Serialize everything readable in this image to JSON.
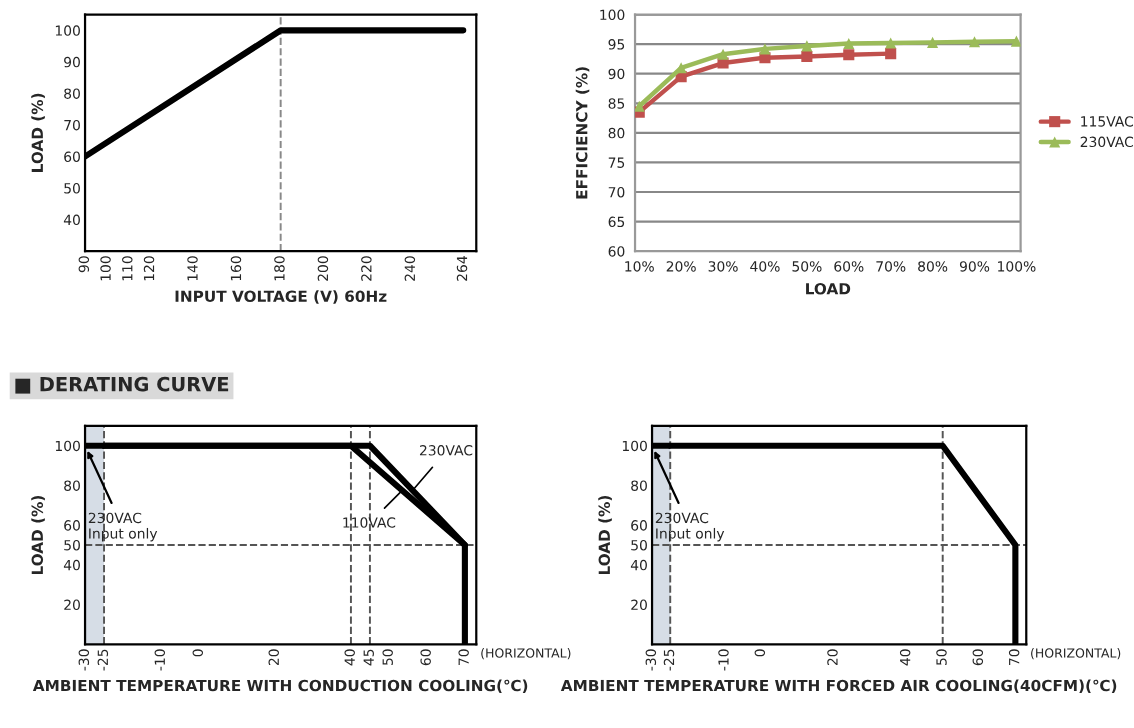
{
  "chart_data": [
    {
      "type": "line",
      "xlabel": "INPUT VOLTAGE (V) 60Hz",
      "ylabel": "LOAD (%)",
      "xlim": [
        90,
        270
      ],
      "xticks": [
        90,
        100,
        110,
        120,
        140,
        160,
        180,
        200,
        220,
        240,
        264
      ],
      "ylim": [
        30,
        105
      ],
      "yticks": [
        40,
        50,
        60,
        70,
        80,
        90,
        100
      ],
      "series": [
        {
          "color": "#000000",
          "x": [
            90,
            180,
            264
          ],
          "values": [
            60,
            100,
            100
          ]
        }
      ],
      "ref_lines": [
        {
          "axis": "x",
          "value": 180,
          "color": "#888888",
          "line_style": "dashed"
        }
      ]
    },
    {
      "type": "line",
      "xlabel": "LOAD",
      "ylabel": "EFFICIENCY (%)",
      "categories": [
        "10%",
        "20%",
        "30%",
        "40%",
        "50%",
        "60%",
        "70%",
        "80%",
        "90%",
        "100%"
      ],
      "ylim": [
        60,
        100
      ],
      "yticks": [
        60,
        65,
        70,
        75,
        80,
        85,
        90,
        95,
        100
      ],
      "grid": "y",
      "legend": "right",
      "series": [
        {
          "name": "115VAC",
          "color": "#c0504d",
          "marker": "square",
          "values": [
            83.5,
            89.5,
            91.8,
            92.7,
            92.9,
            93.2,
            93.4,
            null,
            null,
            null
          ]
        },
        {
          "name": "230VAC",
          "color": "#9bbb59",
          "marker": "triangle",
          "values": [
            84.5,
            91,
            93.3,
            94.2,
            94.7,
            95.1,
            95.2,
            95.3,
            95.4,
            95.5
          ]
        }
      ]
    },
    {
      "type": "line",
      "title": "■ DERATING CURVE",
      "xlabel": "AMBIENT TEMPERATURE WITH CONDUCTION COOLING(℃)",
      "ylabel": "LOAD (%)",
      "xlim": [
        -30,
        73
      ],
      "xticks": [
        -30,
        -25,
        -10,
        0,
        20,
        40,
        45,
        50,
        60,
        70
      ],
      "ylim": [
        0,
        110
      ],
      "yticks": [
        20,
        40,
        50,
        60,
        80,
        100
      ],
      "series": [
        {
          "color": "#000000",
          "line_style": "dashed",
          "x": [
            -30,
            -25
          ],
          "values": [
            100,
            100
          ]
        },
        {
          "name": "230VAC",
          "color": "#000000",
          "x": [
            -25,
            45,
            70,
            70
          ],
          "values": [
            100,
            100,
            50,
            0
          ]
        },
        {
          "name": "110VAC",
          "color": "#000000",
          "x": [
            -25,
            40,
            70
          ],
          "values": [
            100,
            100,
            50
          ]
        }
      ],
      "bands": [
        {
          "axis": "x",
          "from": -30,
          "to": -25,
          "color": "#d6dde6"
        }
      ],
      "ref_lines": [
        {
          "axis": "x",
          "value": -25,
          "color": "#555555",
          "line_style": "dashed"
        },
        {
          "axis": "x",
          "value": 40,
          "color": "#555555",
          "line_style": "dashed"
        },
        {
          "axis": "x",
          "value": 45,
          "color": "#555555",
          "line_style": "dashed"
        },
        {
          "axis": "y",
          "value": 50,
          "color": "#555555",
          "line_style": "dashed"
        }
      ],
      "annotations": [
        {
          "text": "230VAC\nInput only",
          "x": -30,
          "y": 100
        },
        "(HORIZONTAL)"
      ]
    },
    {
      "type": "line",
      "xlabel": "AMBIENT TEMPERATURE WITH FORCED AIR COOLING(40CFM)(℃)",
      "ylabel": "LOAD (%)",
      "xlim": [
        -30,
        73
      ],
      "xticks": [
        -30,
        -25,
        -10,
        0,
        20,
        40,
        50,
        60,
        70
      ],
      "ylim": [
        0,
        110
      ],
      "yticks": [
        20,
        40,
        50,
        60,
        80,
        100
      ],
      "series": [
        {
          "color": "#000000",
          "line_style": "dashed",
          "x": [
            -30,
            -25
          ],
          "values": [
            100,
            100
          ]
        },
        {
          "color": "#000000",
          "x": [
            -25,
            50,
            70,
            70
          ],
          "values": [
            100,
            100,
            50,
            0
          ]
        }
      ],
      "bands": [
        {
          "axis": "x",
          "from": -30,
          "to": -25,
          "color": "#d6dde6"
        }
      ],
      "ref_lines": [
        {
          "axis": "x",
          "value": -25,
          "color": "#555555",
          "line_style": "dashed"
        },
        {
          "axis": "x",
          "value": 50,
          "color": "#555555",
          "line_style": "dashed"
        },
        {
          "axis": "y",
          "value": 50,
          "color": "#555555",
          "line_style": "dashed"
        }
      ],
      "annotations": [
        {
          "text": "230VAC\nInput only",
          "x": -30,
          "y": 100
        },
        "(HORIZONTAL)"
      ]
    }
  ]
}
